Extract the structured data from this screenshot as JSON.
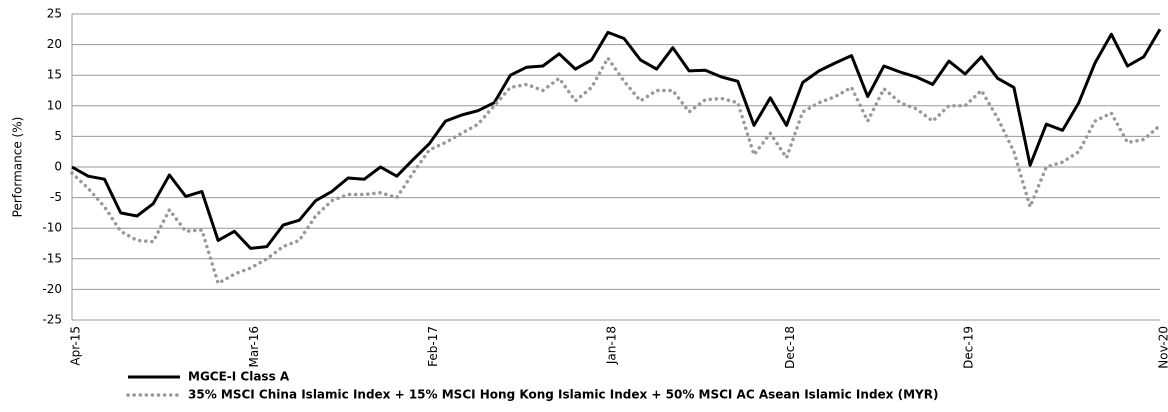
{
  "chart_data": {
    "type": "line",
    "y_label": "Performance (%)",
    "categories": [
      "Apr-15",
      null,
      null,
      null,
      null,
      null,
      null,
      null,
      null,
      null,
      null,
      "Mar-16",
      null,
      null,
      null,
      null,
      null,
      null,
      null,
      null,
      null,
      null,
      "Feb-17",
      null,
      null,
      null,
      null,
      null,
      null,
      null,
      null,
      null,
      null,
      "Jan-18",
      null,
      null,
      null,
      null,
      null,
      null,
      null,
      null,
      null,
      null,
      "Dec-18",
      null,
      null,
      null,
      null,
      null,
      null,
      null,
      null,
      null,
      null,
      "Dec-19",
      null,
      null,
      null,
      null,
      null,
      null,
      null,
      null,
      null,
      null,
      null,
      "Nov-20"
    ],
    "series": [
      {
        "name": "MGCE-I Class A",
        "color": "#000000",
        "style": "solid",
        "values": [
          0,
          -1.5,
          -2,
          -7.5,
          -8,
          -6,
          -1.3,
          -4.8,
          -4,
          -12,
          -10.5,
          -13.3,
          -13,
          -9.5,
          -8.7,
          -5.5,
          -4,
          -1.8,
          -2,
          0,
          -1.5,
          1.2,
          3.8,
          7.5,
          8.5,
          9.2,
          10.5,
          15,
          16.3,
          16.5,
          18.5,
          16,
          17.5,
          22,
          21,
          17.5,
          16,
          19.5,
          15.7,
          15.8,
          14.7,
          14,
          6.8,
          11.3,
          6.8,
          13.8,
          15.7,
          17,
          18.2,
          11.5,
          16.5,
          15.5,
          14.7,
          13.5,
          17.3,
          15.2,
          18,
          14.5,
          13,
          0.3,
          7,
          6,
          10.5,
          17,
          21.7,
          16.5,
          18,
          22.5
        ]
      },
      {
        "name": "35% MSCI China Islamic Index + 15% MSCI Hong Kong Islamic Index + 50% MSCI AC Asean Islamic Index (MYR)",
        "color": "#999999",
        "style": "dotted",
        "values": [
          -1,
          -3.5,
          -6.5,
          -10.5,
          -12,
          -12.2,
          -7,
          -10.5,
          -10.3,
          -19,
          -17.5,
          -16.5,
          -15,
          -13,
          -12,
          -8,
          -5.5,
          -4.5,
          -4.5,
          -4.2,
          -5,
          -1,
          2.8,
          4,
          5.5,
          7,
          10,
          13,
          13.5,
          12.5,
          14.5,
          10.8,
          13,
          17.8,
          14,
          10.8,
          12.5,
          12.5,
          9,
          11,
          11.2,
          10.5,
          2,
          5.5,
          1.5,
          9,
          10.5,
          11.5,
          13,
          7.5,
          12.8,
          10.5,
          9.5,
          7.5,
          10,
          10,
          12.5,
          8,
          2.5,
          -6.5,
          0,
          0.8,
          2.5,
          7.5,
          8.8,
          4,
          4.5,
          6.8
        ]
      }
    ],
    "ylim": [
      -25,
      25
    ],
    "yticks": [
      -25,
      -20,
      -15,
      -10,
      -5,
      0,
      5,
      10,
      15,
      20,
      25
    ],
    "grid": true,
    "legend": "bottom-left"
  }
}
